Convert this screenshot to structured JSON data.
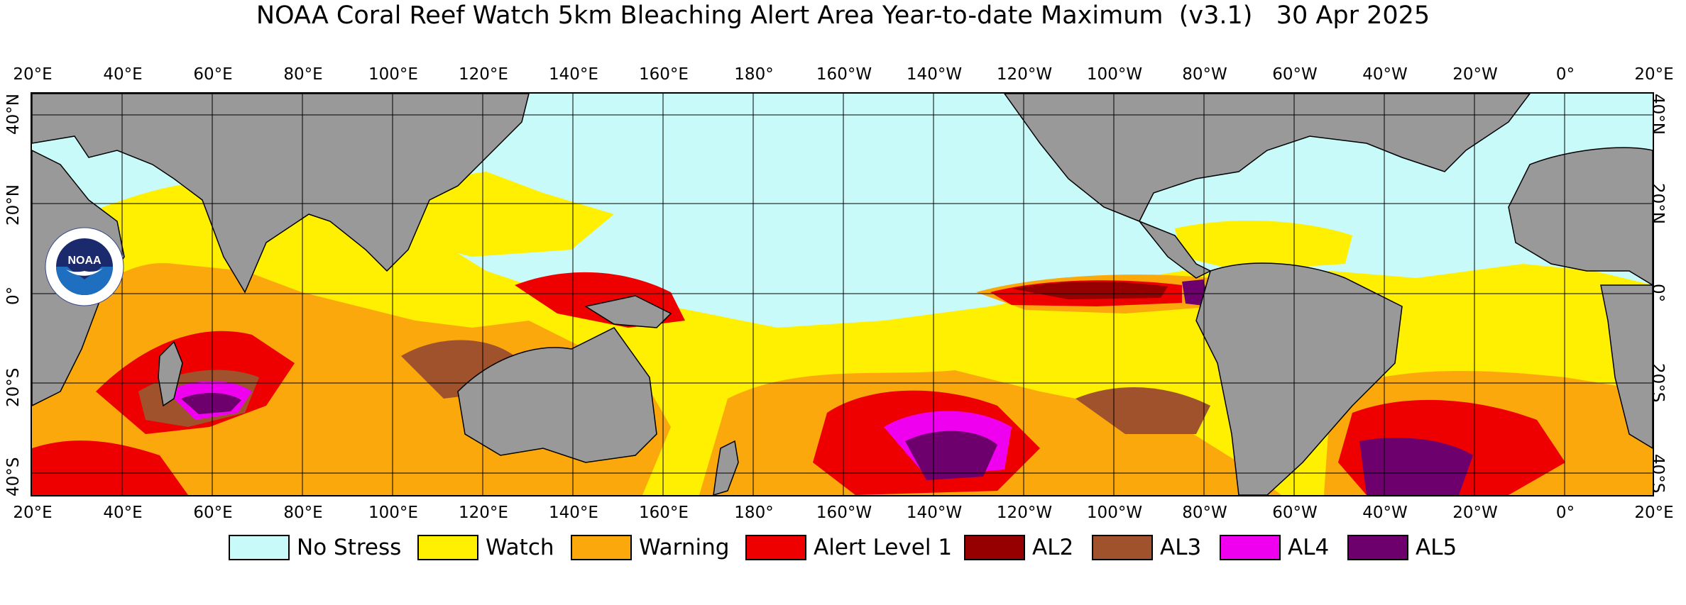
{
  "title": "NOAA Coral Reef Watch 5km Bleaching Alert Area Year-to-date Maximum  (v3.1)   30 Apr 2025",
  "lon_labels": [
    "20°E",
    "40°E",
    "60°E",
    "80°E",
    "100°E",
    "120°E",
    "140°E",
    "160°E",
    "180°",
    "160°W",
    "140°W",
    "120°W",
    "100°W",
    "80°W",
    "60°W",
    "40°W",
    "20°W",
    "0°",
    "20°E"
  ],
  "lat_labels_left": [
    "40°N",
    "20°N",
    "0°",
    "20°S",
    "40°S"
  ],
  "lat_labels_right": [
    "40°N",
    "20°N",
    "0°",
    "20°S",
    "40°S"
  ],
  "logo": {
    "text": "NOAA",
    "ring_text": "NATIONAL OCEANIC AND ATMOSPHERIC ADMINISTRATION · U.S. DEPARTMENT OF COMMERCE"
  },
  "legend": [
    {
      "label": "No Stress",
      "color": "#c8fafa"
    },
    {
      "label": "Watch",
      "color": "#ffef00"
    },
    {
      "label": "Warning",
      "color": "#fba80c"
    },
    {
      "label": "Alert Level 1",
      "color": "#ef0000"
    },
    {
      "label": "AL2",
      "color": "#960000"
    },
    {
      "label": "AL3",
      "color": "#a0522d"
    },
    {
      "label": "AL4",
      "color": "#ef00ef"
    },
    {
      "label": "AL5",
      "color": "#6e006e"
    }
  ],
  "colors": {
    "land": "#999999",
    "ocean_no_stress": "#c8fafa",
    "grid": "#000000"
  }
}
